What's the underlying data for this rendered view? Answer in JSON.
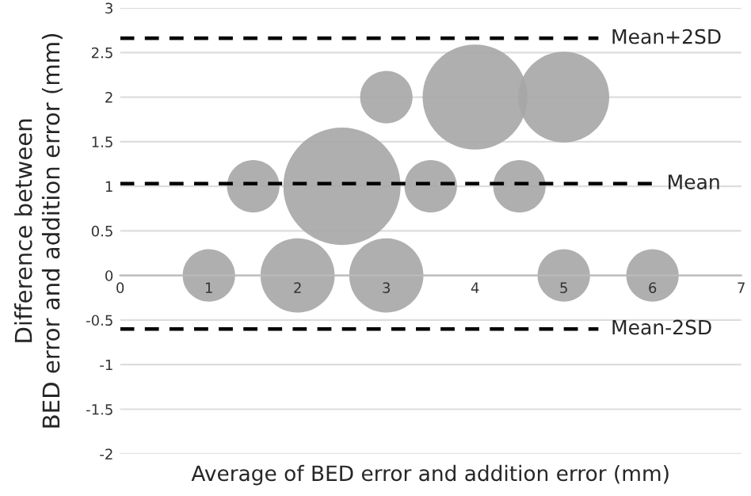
{
  "chart_data": {
    "type": "bubble",
    "xlabel": "Average of BED error and addition error (mm)",
    "ylabel": "Difference between\nBED error and addition error (mm)",
    "x": [
      1,
      2,
      3,
      5,
      6,
      1.5,
      2.5,
      3.5,
      4.5,
      3,
      4,
      5
    ],
    "series": [
      {
        "color": "#a6a6a6",
        "values": [
          0,
          0,
          0,
          0,
          0,
          1,
          1,
          1,
          1,
          2,
          2,
          2
        ],
        "sizes": [
          0.2,
          0.4,
          0.4,
          0.2,
          0.2,
          0.2,
          1,
          0.2,
          0.2,
          0.2,
          0.8,
          0.6
        ]
      }
    ],
    "xlim": [
      0,
      7
    ],
    "xticks": [
      0,
      1,
      2,
      3,
      4,
      5,
      6,
      7
    ],
    "ylim": [
      -2,
      3
    ],
    "yticks": [
      -2,
      -1.5,
      -1,
      -0.5,
      0,
      0.5,
      1,
      1.5,
      2,
      2.5,
      3
    ],
    "grid": "y",
    "ref_lines": [
      {
        "axis": "y",
        "value": 2.66,
        "label": "Mean+2SD",
        "line_style": "dashed",
        "color": "#000000"
      },
      {
        "axis": "y",
        "value": 1.03,
        "label": "Mean",
        "line_style": "dashed",
        "color": "#000000"
      },
      {
        "axis": "y",
        "value": -0.6,
        "label": "Mean-2SD",
        "line_style": "dashed",
        "color": "#000000"
      }
    ]
  }
}
